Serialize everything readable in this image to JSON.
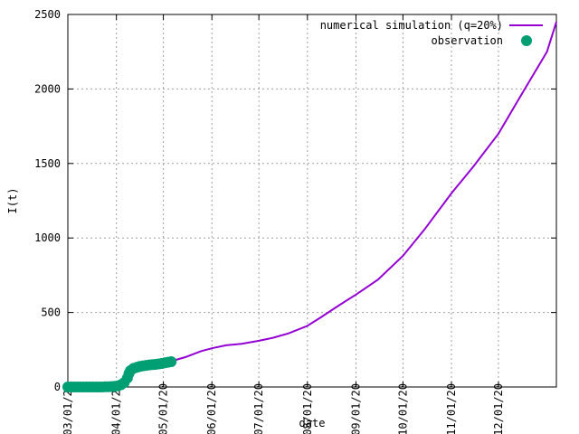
{
  "chart_data": {
    "type": "line",
    "title": "",
    "xlabel": "date",
    "ylabel": "I(t)",
    "grid": true,
    "legend_position": "top-right",
    "x_range": [
      "2020-03-01",
      "2021-01-07"
    ],
    "ylim": [
      0,
      2500
    ],
    "y_ticks": [
      0,
      500,
      1000,
      1500,
      2000,
      2500
    ],
    "x_ticks": [
      {
        "date": "2020-03-01",
        "label": "03/01/20"
      },
      {
        "date": "2020-04-01",
        "label": "04/01/20"
      },
      {
        "date": "2020-05-01",
        "label": "05/01/20"
      },
      {
        "date": "2020-06-01",
        "label": "06/01/20"
      },
      {
        "date": "2020-07-01",
        "label": "07/01/20"
      },
      {
        "date": "2020-08-01",
        "label": "08/01/20"
      },
      {
        "date": "2020-09-01",
        "label": "09/01/20"
      },
      {
        "date": "2020-10-01",
        "label": "10/01/20"
      },
      {
        "date": "2020-11-01",
        "label": "11/01/20"
      },
      {
        "date": "2020-12-01",
        "label": "12/01/20"
      }
    ],
    "series": [
      {
        "name": "numerical simulation (q=20%)",
        "style": "line",
        "color": "#9400d3",
        "points": [
          [
            "2020-03-01",
            0
          ],
          [
            "2020-03-10",
            0
          ],
          [
            "2020-03-20",
            2
          ],
          [
            "2020-03-28",
            5
          ],
          [
            "2020-04-01",
            10
          ],
          [
            "2020-04-06",
            30
          ],
          [
            "2020-04-09",
            80
          ],
          [
            "2020-04-13",
            120
          ],
          [
            "2020-04-20",
            140
          ],
          [
            "2020-04-27",
            150
          ],
          [
            "2020-05-05",
            170
          ],
          [
            "2020-05-15",
            200
          ],
          [
            "2020-05-25",
            240
          ],
          [
            "2020-06-01",
            260
          ],
          [
            "2020-06-10",
            280
          ],
          [
            "2020-06-20",
            290
          ],
          [
            "2020-07-01",
            310
          ],
          [
            "2020-07-10",
            330
          ],
          [
            "2020-07-20",
            360
          ],
          [
            "2020-08-01",
            410
          ],
          [
            "2020-08-10",
            470
          ],
          [
            "2020-08-20",
            540
          ],
          [
            "2020-09-01",
            620
          ],
          [
            "2020-09-15",
            720
          ],
          [
            "2020-10-01",
            880
          ],
          [
            "2020-10-15",
            1060
          ],
          [
            "2020-11-01",
            1300
          ],
          [
            "2020-11-15",
            1480
          ],
          [
            "2020-12-01",
            1700
          ],
          [
            "2020-12-15",
            1950
          ],
          [
            "2021-01-01",
            2250
          ],
          [
            "2021-01-07",
            2450
          ]
        ]
      },
      {
        "name": "observation",
        "style": "points",
        "color": "#009e73",
        "points": [
          [
            "2020-03-01",
            0
          ],
          [
            "2020-03-03",
            0
          ],
          [
            "2020-03-05",
            0
          ],
          [
            "2020-03-07",
            0
          ],
          [
            "2020-03-09",
            0
          ],
          [
            "2020-03-11",
            0
          ],
          [
            "2020-03-13",
            0
          ],
          [
            "2020-03-15",
            0
          ],
          [
            "2020-03-17",
            0
          ],
          [
            "2020-03-19",
            0
          ],
          [
            "2020-03-21",
            0
          ],
          [
            "2020-03-23",
            0
          ],
          [
            "2020-03-25",
            1
          ],
          [
            "2020-03-27",
            2
          ],
          [
            "2020-03-29",
            3
          ],
          [
            "2020-03-31",
            5
          ],
          [
            "2020-04-02",
            8
          ],
          [
            "2020-04-04",
            15
          ],
          [
            "2020-04-06",
            30
          ],
          [
            "2020-04-08",
            60
          ],
          [
            "2020-04-09",
            90
          ],
          [
            "2020-04-10",
            110
          ],
          [
            "2020-04-12",
            125
          ],
          [
            "2020-04-14",
            132
          ],
          [
            "2020-04-16",
            138
          ],
          [
            "2020-04-18",
            142
          ],
          [
            "2020-04-20",
            145
          ],
          [
            "2020-04-22",
            148
          ],
          [
            "2020-04-24",
            150
          ],
          [
            "2020-04-26",
            152
          ],
          [
            "2020-04-28",
            155
          ],
          [
            "2020-04-30",
            158
          ],
          [
            "2020-05-02",
            162
          ],
          [
            "2020-05-04",
            166
          ],
          [
            "2020-05-06",
            170
          ]
        ]
      }
    ]
  }
}
